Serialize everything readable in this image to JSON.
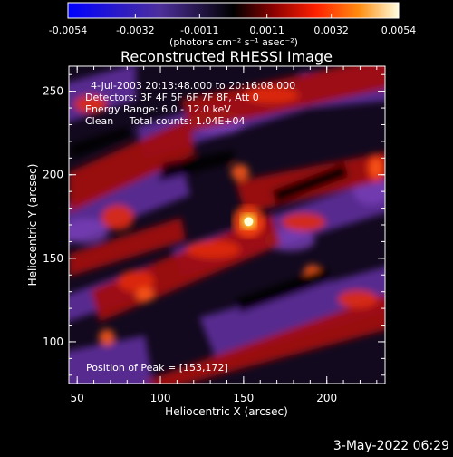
{
  "chart_data": {
    "type": "heatmap",
    "title": "Reconstructed RHESSI Image",
    "xlabel": "Heliocentric X (arcsec)",
    "ylabel": "Heliocentric Y (arcsec)",
    "xlim": [
      45,
      235
    ],
    "ylim": [
      75,
      265
    ],
    "xticks": [
      "50",
      "100",
      "150",
      "200"
    ],
    "yticks": [
      "100",
      "150",
      "200",
      "250"
    ],
    "colorbar": {
      "ticks": [
        "-0.0054",
        "-0.0032",
        "-0.0011",
        "0.0011",
        "0.0032",
        "0.0054"
      ],
      "range": [
        -0.0054,
        0.0054
      ],
      "unit_label": "(photons cm⁻² s⁻¹ asec⁻²)"
    },
    "annotations": [
      "4-Jul-2003 20:13:48.000 to 20:16:08.000",
      "Detectors: 3F 4F 5F 6F 7F 8F, Att 0",
      "Energy Range: 6.0 - 12.0 keV",
      "Clean     Total counts: 1.04E+04"
    ],
    "peak_text": "Position of Peak = [153,172]",
    "peak": {
      "x": 153,
      "y": 172
    }
  },
  "footer": {
    "timestamp": "3-May-2022 06:29"
  }
}
